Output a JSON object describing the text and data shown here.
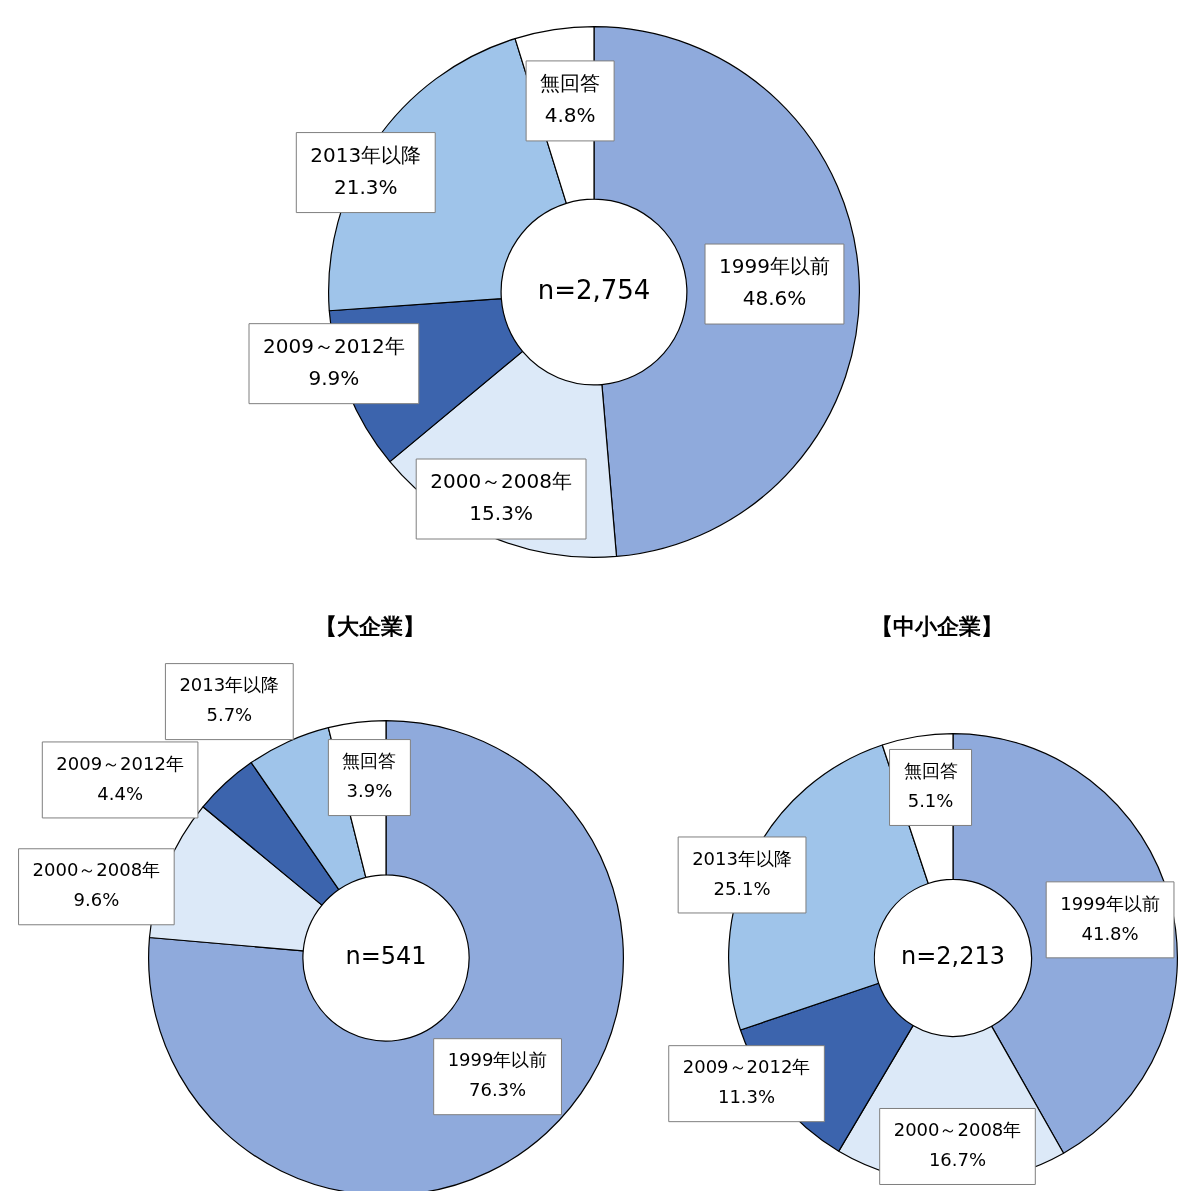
{
  "chart_data": [
    {
      "type": "donut",
      "categories": [
        "1999年以前",
        "2000～2008年",
        "2009～2012年",
        "2013年以降",
        "無回答"
      ],
      "values": [
        48.6,
        15.3,
        9.9,
        21.3,
        4.8
      ],
      "value_labels": [
        "48.6%",
        "15.3%",
        "9.9%",
        "21.3%",
        "4.8%"
      ],
      "colors": [
        "#8faadc",
        "#dce9f8",
        "#3c64ad",
        "#9fc4ea",
        "#ffffff"
      ],
      "annotations": [
        "n=2,754"
      ],
      "legend": false
    },
    {
      "type": "donut",
      "title": "【大企業】",
      "categories": [
        "1999年以前",
        "2000～2008年",
        "2009～2012年",
        "2013年以降",
        "無回答"
      ],
      "values": [
        76.3,
        9.6,
        4.4,
        5.7,
        3.9
      ],
      "value_labels": [
        "76.3%",
        "9.6%",
        "4.4%",
        "5.7%",
        "3.9%"
      ],
      "colors": [
        "#8faadc",
        "#dce9f8",
        "#3c64ad",
        "#9fc4ea",
        "#ffffff"
      ],
      "annotations": [
        "n=541"
      ],
      "legend": false
    },
    {
      "type": "donut",
      "title": "【中小企業】",
      "categories": [
        "1999年以前",
        "2000～2008年",
        "2009～2012年",
        "2013年以降",
        "無回答"
      ],
      "values": [
        41.8,
        16.7,
        11.3,
        25.1,
        5.1
      ],
      "value_labels": [
        "41.8%",
        "16.7%",
        "11.3%",
        "25.1%",
        "5.1%"
      ],
      "colors": [
        "#8faadc",
        "#dce9f8",
        "#3c64ad",
        "#9fc4ea",
        "#ffffff"
      ],
      "annotations": [
        "n=2,213"
      ],
      "legend": false
    }
  ]
}
